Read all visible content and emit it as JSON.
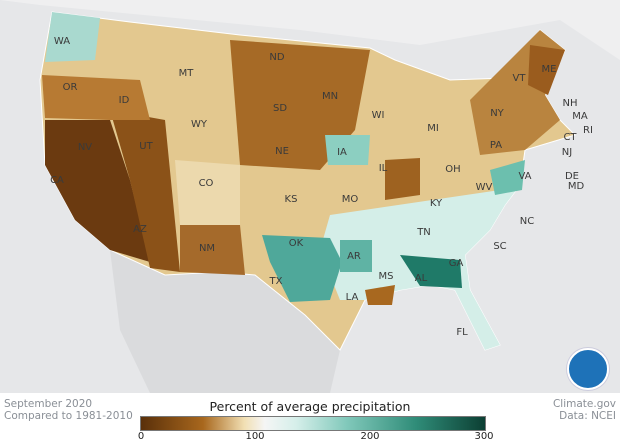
{
  "map": {
    "type": "choropleth",
    "region": "Contiguous United States",
    "state_labels": [
      "WA",
      "OR",
      "ID",
      "MT",
      "WY",
      "NV",
      "UT",
      "CO",
      "CA",
      "AZ",
      "NM",
      "ND",
      "SD",
      "NE",
      "KS",
      "OK",
      "TX",
      "MN",
      "IA",
      "MO",
      "AR",
      "LA",
      "WI",
      "IL",
      "MS",
      "MI",
      "OH",
      "KY",
      "TN",
      "AL",
      "GA",
      "FL",
      "WV",
      "VA",
      "NC",
      "SC",
      "PA",
      "NY",
      "VT",
      "ME",
      "NH",
      "MA",
      "CT",
      "RI",
      "NJ",
      "DE",
      "MD"
    ]
  },
  "footer": {
    "period": "September 2020",
    "baseline": "Compared to 1981-2010",
    "credit": "Climate.gov",
    "source": "Data: NCEI",
    "logo_text": "NOAA"
  },
  "legend": {
    "title": "Percent of average precipitation",
    "ticks": [
      "0",
      "100",
      "200",
      "300"
    ],
    "range": [
      0,
      300
    ],
    "colors": {
      "dry": "#5a300a",
      "normal": "#f5f5f5",
      "wet": "#0c3f33"
    }
  }
}
